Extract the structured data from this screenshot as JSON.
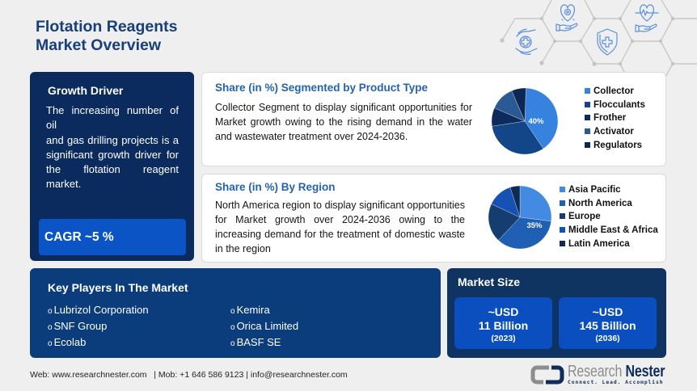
{
  "header": {
    "title_line1": "Flotation Reagents",
    "title_line2": "Market Overview"
  },
  "growth_driver": {
    "heading": "Growth Driver",
    "lines": [
      "The increasing number of oil",
      "and gas drilling projects is a",
      "significant growth driver for",
      "the flotation reagent",
      "market."
    ],
    "cagr": "CAGR ~5 %"
  },
  "segment_card": {
    "title": "Share (in %) Segmented by Product Type",
    "lines": [
      "Collector Segment to display significant opportunities for",
      "Market growth owing to the rising demand in the water",
      "and wastewater treatment over 2024-2036."
    ],
    "pie_label": "40%"
  },
  "region_card": {
    "title": "Share (in %) By Region",
    "lines": [
      "North America region to display significant opportunities",
      "for Market growth over 2024-2036 owing to the",
      "increasing demand for the treatment of domestic waste",
      "in the region"
    ],
    "pie_label": "35%"
  },
  "key_players": {
    "heading": "Key Players In The Market",
    "bullet": "o",
    "column1": [
      "Lubrizol Corporation",
      "SNF Group",
      "Ecolab"
    ],
    "column2": [
      "Kemira",
      "Orica Limited",
      "BASF SE"
    ]
  },
  "market_size": {
    "heading": "Market Size",
    "boxes": [
      {
        "currency": "~USD",
        "value": "11 Billion",
        "year": "(2023)"
      },
      {
        "currency": "~USD",
        "value": "145 Billion",
        "year": "(2036)"
      }
    ]
  },
  "footer": {
    "contact": "Web: www.researchnester.com   | Mob: +1 646 586 9123 | info@researchnester.com"
  },
  "logo": {
    "word1": "Research",
    "word2": "Nester",
    "tagline": "Connect. Lead. Accomplish"
  },
  "decoration": {
    "icons": [
      "hands-plus-icon",
      "heart-hand-icon",
      "shield-plus-icon",
      "heart-pulse-hand-icon"
    ],
    "icon_color": "#5b8fe0",
    "line_color": "#c9c9c9"
  },
  "colors": {
    "title": "#173f7a",
    "card_title": "#2563b0",
    "growth_panel": "#0b2b5e",
    "cagr_box": "#0a54c6",
    "players_panel": "#0b3d7d",
    "market_panel": "#0f3461",
    "market_box": "#0a4ec0",
    "background": "#efefef"
  },
  "chart_data": [
    {
      "type": "pie",
      "title": "Share (in %) Segmented by Product Type",
      "categories": [
        "Collector",
        "Flocculants",
        "Frother",
        "Activator",
        "Regulators"
      ],
      "values": [
        40,
        32,
        9,
        12,
        7
      ],
      "colors": [
        "#3583de",
        "#134589",
        "#0c2a5c",
        "#2a5a94",
        "#0e2751"
      ],
      "data_labels": {
        "Collector": "40%"
      },
      "legend_position": "right",
      "start_angle": 2
    },
    {
      "type": "pie",
      "title": "Share (in %) By Region",
      "categories": [
        "Asia Pacific",
        "North America",
        "Europe",
        "Middle East & Africa",
        "Latin America"
      ],
      "values": [
        27,
        35,
        20,
        13,
        5
      ],
      "colors": [
        "#438be2",
        "#1f60b4",
        "#163d6f",
        "#1552b4",
        "#0f2b54"
      ],
      "data_labels": {
        "North America": "35%"
      },
      "legend_position": "right",
      "start_angle": 0
    }
  ]
}
